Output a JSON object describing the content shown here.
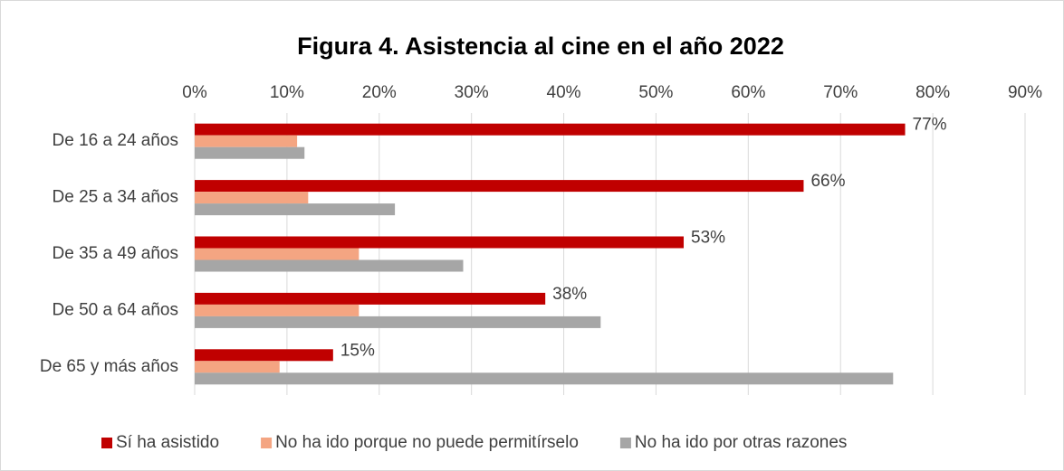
{
  "chart_data": {
    "type": "barh",
    "title": "Figura 4. Asistencia al cine en el año 2022",
    "categories": [
      "De 16 a 24 años",
      "De 25 a 34 años",
      "De 35 a 49 años",
      "De 50 a 64 años",
      "De 65 y más años"
    ],
    "series": [
      {
        "name": "Sí ha asistido",
        "color": "#c00000",
        "values": [
          77,
          66,
          53,
          38,
          15
        ],
        "value_labels": [
          "77%",
          "66%",
          "53%",
          "38%",
          "15%"
        ]
      },
      {
        "name": "No ha ido porque no puede permitírselo",
        "color": "#f4a582",
        "values": [
          11.1,
          12.3,
          17.8,
          17.8,
          9.2
        ]
      },
      {
        "name": "No ha ido por otras razones",
        "color": "#a6a6a6",
        "values": [
          11.9,
          21.7,
          29.1,
          44.0,
          75.7
        ]
      }
    ],
    "xlim": [
      0,
      90
    ],
    "xticks": [
      {
        "value": 0,
        "label": "0%"
      },
      {
        "value": 10,
        "label": "10%"
      },
      {
        "value": 20,
        "label": "20%"
      },
      {
        "value": 30,
        "label": "30%"
      },
      {
        "value": 40,
        "label": "40%"
      },
      {
        "value": 50,
        "label": "50%"
      },
      {
        "value": 60,
        "label": "60%"
      },
      {
        "value": 70,
        "label": "70%"
      },
      {
        "value": 80,
        "label": "80%"
      },
      {
        "value": 90,
        "label": "90%"
      }
    ],
    "grid": true,
    "legend": "bottom"
  }
}
